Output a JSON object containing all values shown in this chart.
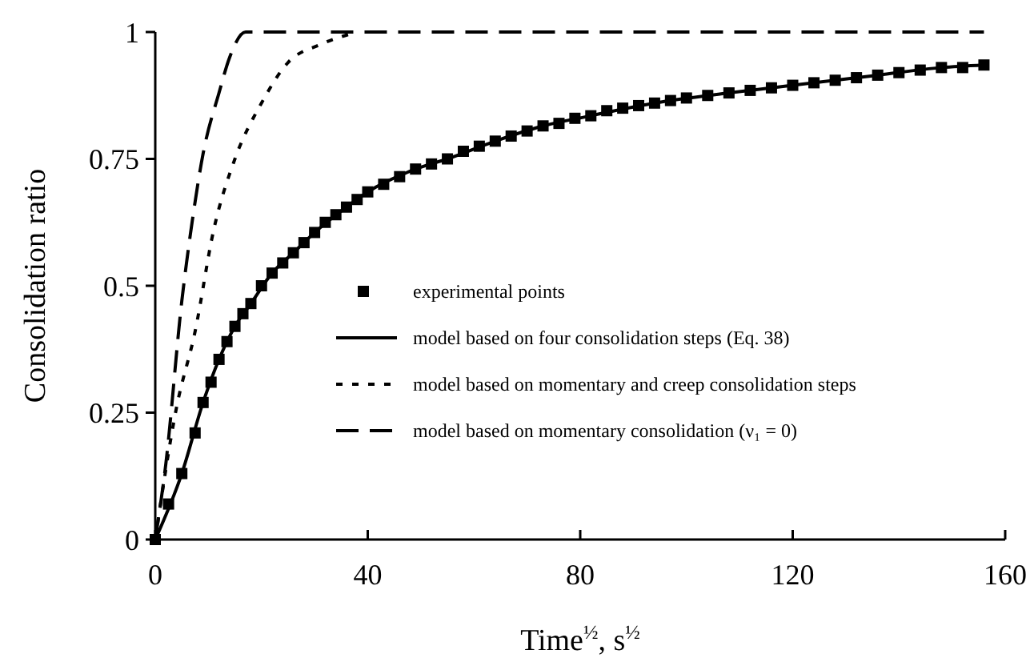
{
  "chart_data": {
    "type": "line",
    "xlabel": "Time$^{½}$, s$^{½}$",
    "ylabel": "Consolidation ratio",
    "xlim": [
      0,
      160
    ],
    "ylim": [
      0,
      1
    ],
    "xticks": [
      0,
      40,
      80,
      120,
      160
    ],
    "yticks": [
      0,
      0.25,
      0.5,
      0.75,
      1
    ],
    "grid": false,
    "legend": "right",
    "series": [
      {
        "name": "experimental points",
        "type": "scatter",
        "marker": "square",
        "color": "#000000",
        "x": [
          0,
          2.5,
          5,
          7.5,
          9,
          10.5,
          12,
          13.5,
          15,
          16.5,
          18,
          20,
          22,
          24,
          26,
          28,
          30,
          32,
          34,
          36,
          38,
          40,
          43,
          46,
          49,
          52,
          55,
          58,
          61,
          64,
          67,
          70,
          73,
          76,
          79,
          82,
          85,
          88,
          91,
          94,
          97,
          100,
          104,
          108,
          112,
          116,
          120,
          124,
          128,
          132,
          136,
          140,
          144,
          148,
          152,
          156
        ],
        "values": [
          0,
          0.07,
          0.13,
          0.21,
          0.27,
          0.31,
          0.355,
          0.39,
          0.42,
          0.445,
          0.465,
          0.5,
          0.525,
          0.545,
          0.565,
          0.585,
          0.605,
          0.625,
          0.64,
          0.655,
          0.67,
          0.685,
          0.7,
          0.715,
          0.73,
          0.74,
          0.75,
          0.765,
          0.775,
          0.785,
          0.795,
          0.805,
          0.815,
          0.82,
          0.83,
          0.835,
          0.845,
          0.85,
          0.855,
          0.86,
          0.865,
          0.87,
          0.875,
          0.88,
          0.885,
          0.89,
          0.895,
          0.9,
          0.905,
          0.91,
          0.915,
          0.92,
          0.925,
          0.93,
          0.93,
          0.935
        ]
      },
      {
        "name": "model based on four consolidation steps (Eq. 38)",
        "type": "line",
        "line_style": "solid",
        "color": "#000000",
        "x": [
          0,
          5,
          9,
          12,
          15,
          18,
          22,
          26,
          30,
          36,
          40,
          49,
          55,
          64,
          73,
          82,
          94,
          108,
          120,
          136,
          148,
          156
        ],
        "values": [
          0,
          0.13,
          0.27,
          0.355,
          0.42,
          0.465,
          0.525,
          0.565,
          0.605,
          0.655,
          0.685,
          0.73,
          0.75,
          0.785,
          0.815,
          0.835,
          0.86,
          0.88,
          0.895,
          0.915,
          0.93,
          0.935
        ]
      },
      {
        "name": "model based on momentary and creep consolidation steps",
        "type": "line",
        "line_style": "dotted",
        "color": "#000000",
        "x": [
          0,
          4,
          7.5,
          11,
          15,
          20,
          25,
          31,
          38
        ],
        "values": [
          0,
          0.26,
          0.41,
          0.61,
          0.75,
          0.86,
          0.94,
          0.975,
          1
        ]
      },
      {
        "name": "model based on momentary consolidation (ν₁ = 0)",
        "type": "line",
        "line_style": "dashed",
        "color": "#000000",
        "x": [
          0,
          2,
          5,
          7,
          9,
          12,
          14,
          17,
          156
        ],
        "values": [
          0,
          0.15,
          0.47,
          0.63,
          0.76,
          0.88,
          0.95,
          1,
          1
        ]
      }
    ]
  }
}
